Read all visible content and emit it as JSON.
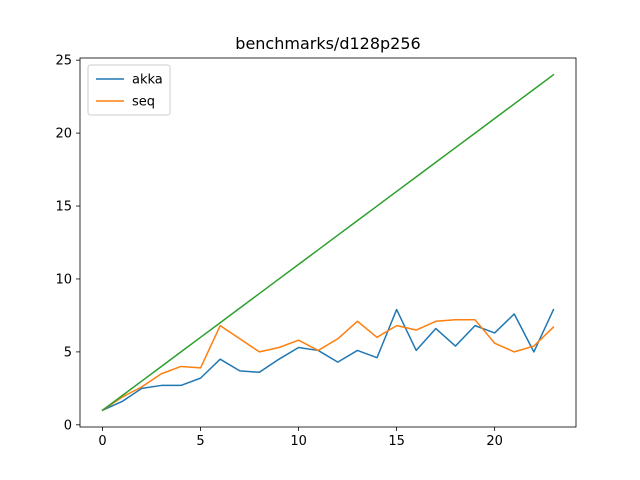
{
  "chart_data": {
    "type": "line",
    "title": "benchmarks/d128p256",
    "xlabel": "",
    "ylabel": "",
    "xlim": [
      -1.15,
      24.15
    ],
    "ylim": [
      -0.15,
      25.15
    ],
    "xticks": [
      0,
      5,
      10,
      15,
      20
    ],
    "yticks": [
      0,
      5,
      10,
      15,
      20,
      25
    ],
    "grid": false,
    "legend_position": "top-left",
    "x": [
      0,
      1,
      2,
      3,
      4,
      5,
      6,
      7,
      8,
      9,
      10,
      11,
      12,
      13,
      14,
      15,
      16,
      17,
      18,
      19,
      20,
      21,
      22,
      23
    ],
    "series": [
      {
        "name": "akka",
        "color": "#1f77b4",
        "in_legend": true,
        "values": [
          1.0,
          1.6,
          2.5,
          2.7,
          2.7,
          3.2,
          4.5,
          3.7,
          3.6,
          4.5,
          5.3,
          5.1,
          4.3,
          5.1,
          4.6,
          7.9,
          5.1,
          6.6,
          5.4,
          6.8,
          6.3,
          7.6,
          5.0,
          7.9
        ]
      },
      {
        "name": "seq",
        "color": "#ff7f0e",
        "in_legend": true,
        "values": [
          1.0,
          1.9,
          2.6,
          3.5,
          4.0,
          3.9,
          6.8,
          5.9,
          5.0,
          5.3,
          5.8,
          5.1,
          5.9,
          7.1,
          6.0,
          6.8,
          6.5,
          7.1,
          7.2,
          7.2,
          5.6,
          5.0,
          5.4,
          6.7
        ]
      },
      {
        "name": "",
        "color": "#2ca02c",
        "in_legend": false,
        "values": [
          1,
          2,
          3,
          4,
          5,
          6,
          7,
          8,
          9,
          10,
          11,
          12,
          13,
          14,
          15,
          16,
          17,
          18,
          19,
          20,
          21,
          22,
          23,
          24
        ]
      }
    ]
  }
}
